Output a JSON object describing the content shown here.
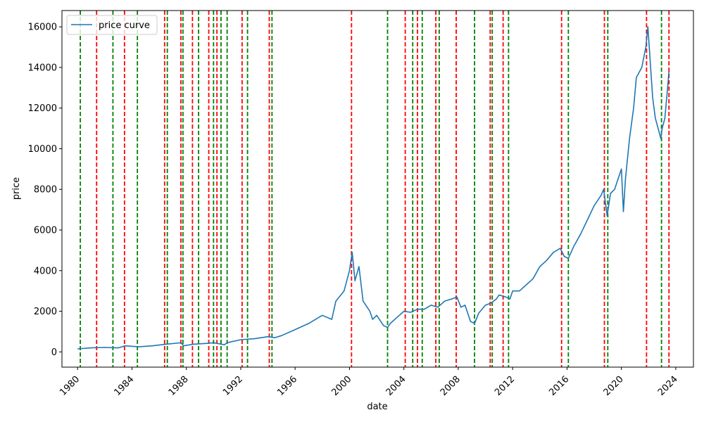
{
  "chart_data": {
    "type": "line",
    "title": "",
    "xlabel": "date",
    "ylabel": "price",
    "xlim": [
      1978.85,
      2025.3
    ],
    "ylim": [
      -750,
      16800
    ],
    "x_ticks": [
      1980,
      1984,
      1988,
      1992,
      1996,
      2000,
      2004,
      2008,
      2012,
      2016,
      2020,
      2024
    ],
    "y_ticks": [
      0,
      2000,
      4000,
      6000,
      8000,
      10000,
      12000,
      14000,
      16000
    ],
    "grid": false,
    "legend": {
      "placement": "top-left",
      "entries": [
        "price curve"
      ]
    },
    "series": [
      {
        "name": "price curve",
        "color": "#1f77b4",
        "x": [
          1980.0,
          1981.0,
          1982.0,
          1983.0,
          1983.5,
          1984.5,
          1985.5,
          1986.5,
          1987.6,
          1987.8,
          1988.5,
          1989.5,
          1990.0,
          1990.8,
          1991.0,
          1992.0,
          1993.0,
          1994.0,
          1994.5,
          1995.0,
          1996.0,
          1997.0,
          1998.0,
          1998.7,
          1999.0,
          1999.6,
          2000.0,
          2000.2,
          2000.4,
          2000.7,
          2001.0,
          2001.5,
          2001.7,
          2002.0,
          2002.5,
          2002.8,
          2003.0,
          2003.5,
          2004.0,
          2004.5,
          2005.0,
          2005.5,
          2006.0,
          2006.5,
          2007.0,
          2007.5,
          2007.9,
          2008.2,
          2008.5,
          2008.9,
          2009.2,
          2009.5,
          2010.0,
          2010.4,
          2010.8,
          2011.0,
          2011.5,
          2011.8,
          2012.0,
          2012.5,
          2013.0,
          2013.5,
          2014.0,
          2014.5,
          2015.0,
          2015.5,
          2015.8,
          2016.1,
          2016.5,
          2017.0,
          2017.5,
          2018.0,
          2018.5,
          2018.7,
          2018.95,
          2019.2,
          2019.5,
          2020.0,
          2020.15,
          2020.3,
          2020.6,
          2020.9,
          2021.1,
          2021.5,
          2021.8,
          2021.95,
          2022.1,
          2022.3,
          2022.5,
          2022.7,
          2022.9,
          2023.0,
          2023.2,
          2023.4,
          2023.5
        ],
        "values": [
          150,
          200,
          220,
          200,
          300,
          250,
          300,
          380,
          450,
          300,
          380,
          420,
          450,
          350,
          450,
          600,
          650,
          750,
          700,
          800,
          1100,
          1400,
          1800,
          1600,
          2500,
          3000,
          4000,
          4900,
          3500,
          4200,
          2500,
          2000,
          1600,
          1800,
          1300,
          1200,
          1400,
          1700,
          2000,
          1950,
          2100,
          2100,
          2300,
          2200,
          2500,
          2600,
          2700,
          2200,
          2300,
          1500,
          1400,
          1900,
          2300,
          2400,
          2600,
          2800,
          2700,
          2600,
          3000,
          3000,
          3300,
          3600,
          4200,
          4500,
          4900,
          5100,
          4700,
          4600,
          5200,
          5800,
          6500,
          7200,
          7700,
          8000,
          6700,
          7800,
          8000,
          9000,
          6900,
          8500,
          10500,
          12000,
          13500,
          14000,
          15000,
          16000,
          14500,
          12500,
          11500,
          11000,
          10500,
          11000,
          11500,
          13000,
          13800
        ]
      }
    ],
    "vlines": [
      {
        "color": "green",
        "x": [
          1980.2,
          1982.6,
          1984.4,
          1986.6,
          1987.75,
          1988.9,
          1990.0,
          1990.55,
          1991.0,
          1992.5,
          1994.3,
          2002.8,
          2004.65,
          2005.35,
          2006.6,
          2009.2,
          2010.5,
          2011.7,
          2016.1,
          2019.0,
          2022.95
        ]
      },
      {
        "color": "red",
        "x": [
          1981.4,
          1983.45,
          1986.4,
          1987.6,
          1988.45,
          1989.65,
          1990.25,
          1992.1,
          1994.1,
          2000.15,
          2004.1,
          2005.0,
          2006.35,
          2007.85,
          2010.35,
          2011.3,
          2015.6,
          2018.75,
          2021.85,
          2023.5
        ]
      }
    ]
  }
}
